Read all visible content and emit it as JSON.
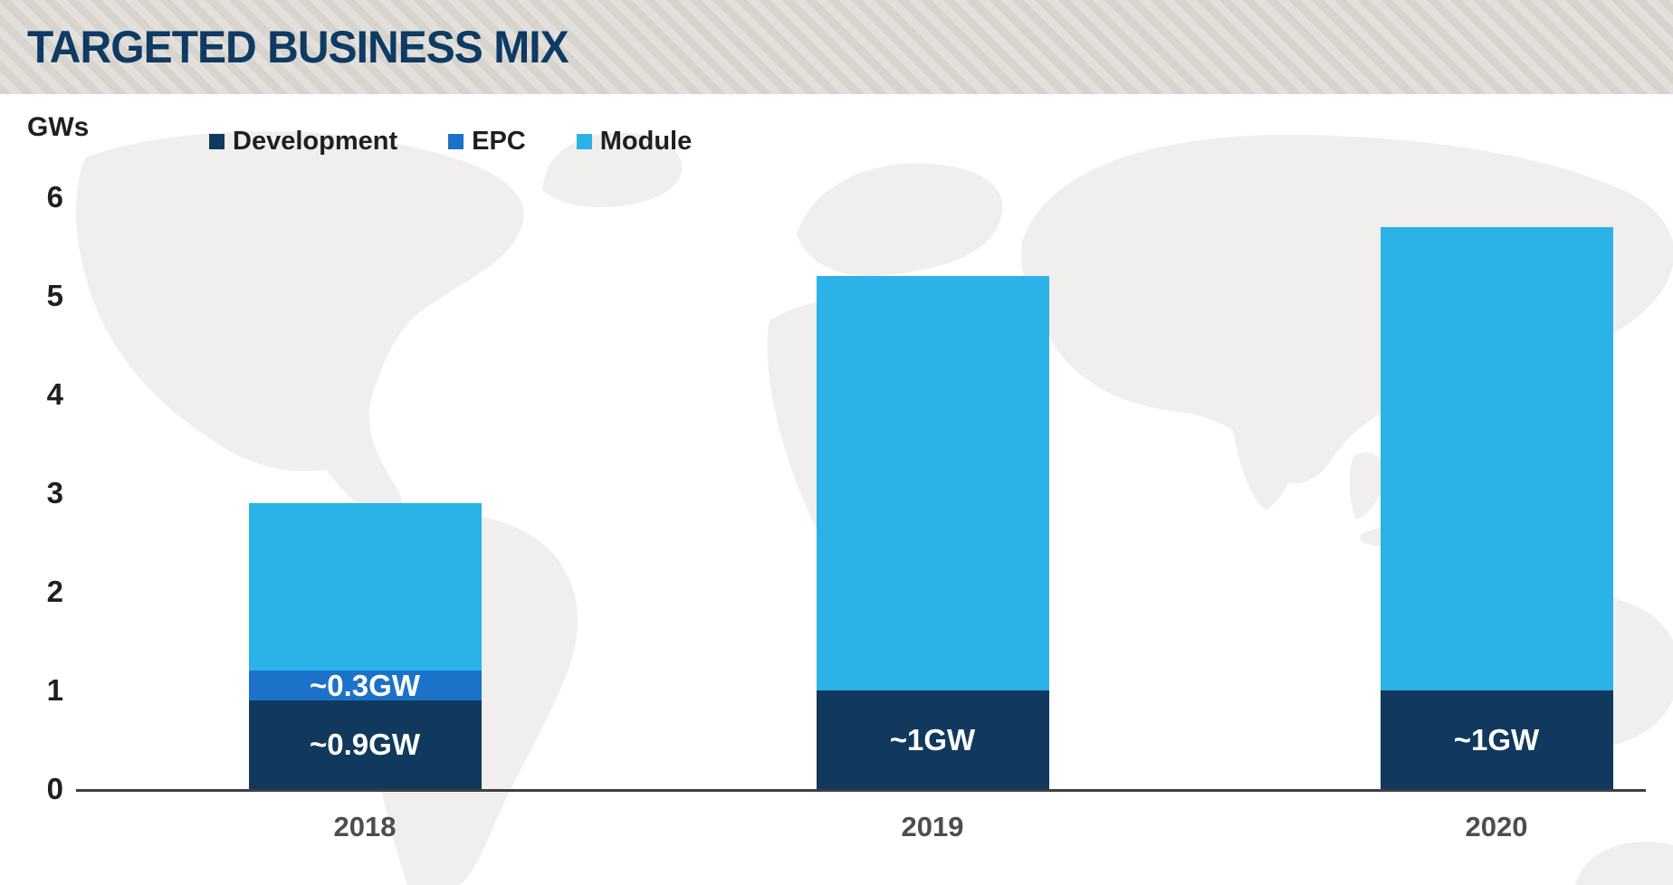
{
  "header": {
    "title": "TARGETED BUSINESS MIX"
  },
  "chart_data": {
    "type": "bar",
    "stacked": true,
    "title": "Targeted Business Mix",
    "ylabel": "GWs",
    "xlabel": "",
    "categories": [
      "2018",
      "2019",
      "2020"
    ],
    "series": [
      {
        "name": "Development",
        "color": "#11395d",
        "values": [
          0.9,
          1.0,
          1.0
        ],
        "segment_labels": [
          "~0.9GW",
          "~1GW",
          "~1GW"
        ]
      },
      {
        "name": "EPC",
        "color": "#1c72c9",
        "values": [
          0.3,
          0.0,
          0.0
        ],
        "segment_labels": [
          "~0.3GW",
          "",
          ""
        ]
      },
      {
        "name": "Module",
        "color": "#2bb3e8",
        "values": [
          1.7,
          4.2,
          4.7
        ],
        "segment_labels": [
          "",
          "",
          ""
        ]
      }
    ],
    "totals": [
      2.9,
      5.2,
      5.7
    ],
    "yticks": [
      0,
      1,
      2,
      3,
      4,
      5,
      6
    ],
    "ylim": [
      0,
      6.4
    ],
    "grid": false,
    "legend_position": "top-left",
    "background": "faint world map"
  },
  "colors": {
    "banner_title": "#0e3a63",
    "banner_stripe_a": "#d7d4ce",
    "banner_stripe_b": "#e3e0db",
    "axis_line": "#3f3f3f",
    "tick_label": "#1f1f1f",
    "legend_text": "#1f1f1f",
    "category_label": "#4d4d4d",
    "segment_label": "#ffffff",
    "map_fill": "#f0efee"
  }
}
